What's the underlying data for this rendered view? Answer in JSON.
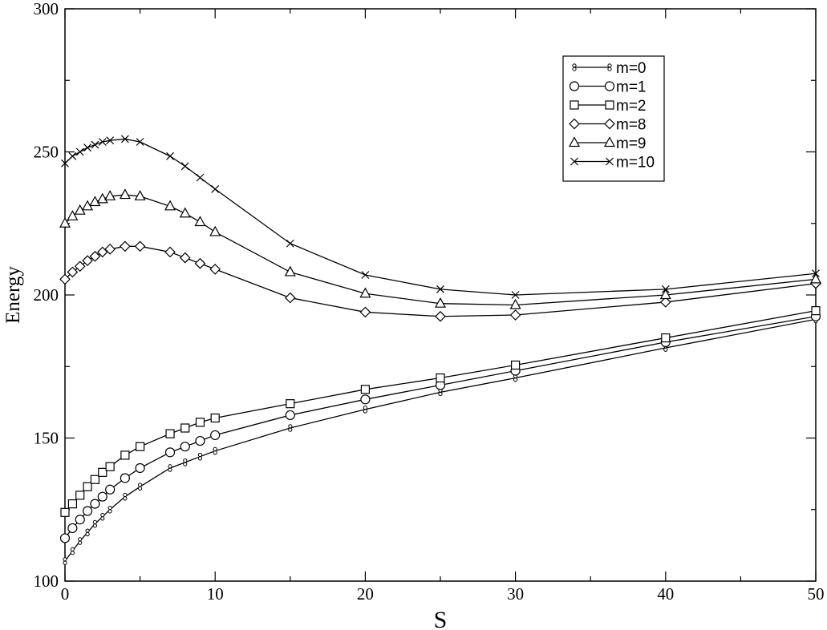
{
  "chart_data": {
    "type": "line",
    "xlabel": "S",
    "ylabel": "Energy",
    "xlim": [
      0,
      50
    ],
    "ylim": [
      100,
      300
    ],
    "xticks": [
      "0",
      "10",
      "20",
      "30",
      "40",
      "50"
    ],
    "yticks": [
      "100",
      "150",
      "200",
      "250",
      "300"
    ],
    "grid": false,
    "legend_position": "top-right",
    "series": [
      {
        "name": "m=0",
        "marker": "figure-eight",
        "x": [
          0,
          0.5,
          1,
          1.5,
          2,
          2.5,
          3,
          4,
          5,
          7,
          8,
          9,
          10,
          15,
          20,
          25,
          30,
          40,
          50
        ],
        "y": [
          107,
          110.5,
          114,
          117,
          120,
          122.5,
          125,
          129.5,
          133,
          139.5,
          141.5,
          143.5,
          145.5,
          153.5,
          160,
          166,
          171,
          181.5,
          191.5
        ]
      },
      {
        "name": "m=1",
        "marker": "circle",
        "x": [
          0,
          0.5,
          1,
          1.5,
          2,
          2.5,
          3,
          4,
          5,
          7,
          8,
          9,
          10,
          15,
          20,
          25,
          30,
          40,
          50
        ],
        "y": [
          115,
          118.5,
          121.5,
          124.5,
          127,
          129.5,
          132,
          136,
          139.5,
          145,
          147,
          149,
          151,
          158,
          163.5,
          168.5,
          173.5,
          183.5,
          192.5
        ]
      },
      {
        "name": "m=2",
        "marker": "square",
        "x": [
          0,
          0.5,
          1,
          1.5,
          2,
          2.5,
          3,
          4,
          5,
          7,
          8,
          9,
          10,
          15,
          20,
          25,
          30,
          40,
          50
        ],
        "y": [
          124,
          127,
          130,
          133,
          135.5,
          138,
          140,
          144,
          147,
          151.5,
          153.5,
          155.5,
          157,
          162,
          167,
          171,
          175.5,
          185,
          194.5
        ]
      },
      {
        "name": "m=8",
        "marker": "diamond",
        "x": [
          0,
          0.5,
          1,
          1.5,
          2,
          2.5,
          3,
          4,
          5,
          7,
          8,
          9,
          10,
          15,
          20,
          25,
          30,
          40,
          50
        ],
        "y": [
          205.5,
          208,
          210,
          212,
          213.5,
          215,
          216,
          217,
          217,
          215,
          213,
          211,
          209,
          199,
          194,
          192.5,
          193,
          197.5,
          204
        ]
      },
      {
        "name": "m=9",
        "marker": "triangle",
        "x": [
          0,
          0.5,
          1,
          1.5,
          2,
          2.5,
          3,
          4,
          5,
          7,
          8,
          9,
          10,
          15,
          20,
          25,
          30,
          40,
          50
        ],
        "y": [
          225,
          227.5,
          229.5,
          231,
          232.5,
          233.5,
          234.5,
          235,
          234.5,
          231,
          228.5,
          225.5,
          222,
          208,
          200.5,
          197,
          196.5,
          200,
          205.5
        ]
      },
      {
        "name": "m=10",
        "marker": "x",
        "x": [
          0,
          0.5,
          1,
          1.5,
          2,
          2.5,
          3,
          4,
          5,
          7,
          8,
          9,
          10,
          15,
          20,
          25,
          30,
          40,
          50
        ],
        "y": [
          246,
          248.5,
          250,
          251.5,
          252.5,
          253.5,
          254,
          254.5,
          253.5,
          248.5,
          245,
          241,
          237,
          218,
          207,
          202,
          200,
          202,
          207.5
        ]
      }
    ]
  }
}
